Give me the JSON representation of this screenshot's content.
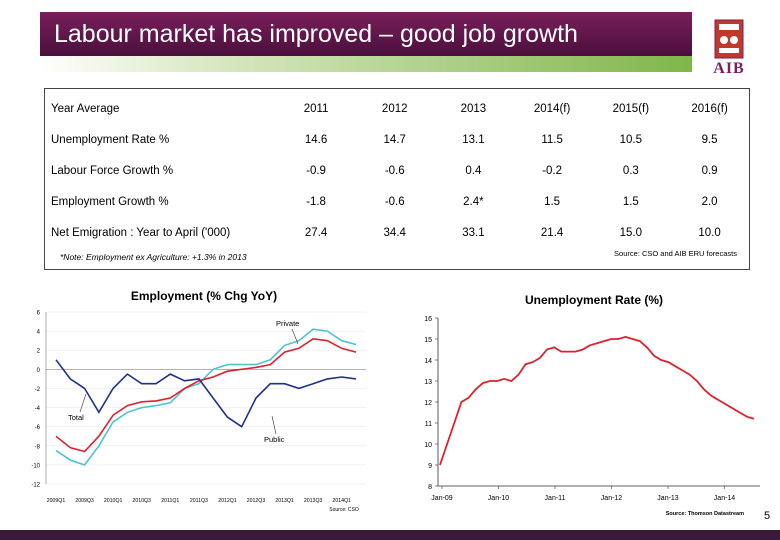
{
  "slide": {
    "title": "Labour market has improved – good job growth",
    "logo_text": "AIB",
    "page_number": "5",
    "colors": {
      "title_bg": "#6a1650",
      "accent_green": "#7fb64a",
      "logo_red": "#c0392b"
    }
  },
  "table": {
    "headers": [
      "Year Average",
      "2011",
      "2012",
      "2013",
      "2014(f)",
      "2015(f)",
      "2016(f)"
    ],
    "rows": [
      {
        "label": "Unemployment Rate %",
        "values": [
          "14.6",
          "14.7",
          "13.1",
          "11.5",
          "10.5",
          "9.5"
        ]
      },
      {
        "label": "Labour Force Growth %",
        "values": [
          "-0.9",
          "-0.6",
          "0.4",
          "-0.2",
          "0.3",
          "0.9"
        ]
      },
      {
        "label": "Employment Growth %",
        "values": [
          "-1.8",
          "-0.6",
          "2.4*",
          "1.5",
          "1.5",
          "2.0"
        ]
      },
      {
        "label": "Net Emigration : Year to April ('000)",
        "values": [
          "27.4",
          "34.4",
          "33.1",
          "21.4",
          "15.0",
          "10.0"
        ]
      }
    ],
    "note": "*Note: Employment ex Agriculture: +1.3% in 2013",
    "source": "Source: CSO and AIB ERU forecasts"
  },
  "chart_data": [
    {
      "type": "line",
      "title": "Employment (% Chg YoY)",
      "xlabel": "",
      "ylabel": "",
      "ylim": [
        -12,
        6
      ],
      "y_ticks": [
        "6",
        "4",
        "2",
        "0",
        "-2",
        "-4",
        "-6",
        "-8",
        "-10",
        "-12"
      ],
      "x_tick_labels": [
        "2009Q1",
        "2009Q3",
        "2010Q1",
        "2010Q3",
        "2011Q1",
        "2011Q3",
        "2012Q1",
        "2012Q3",
        "2013Q1",
        "2013Q3",
        "2014Q1"
      ],
      "annotations": [
        "Private",
        "Total",
        "Public"
      ],
      "source": "Source: CSO",
      "series": [
        {
          "name": "Private",
          "color": "#4dc3cc",
          "values": [
            -8.5,
            -9.5,
            -10.0,
            -8.0,
            -5.5,
            -4.5,
            -4.0,
            -3.8,
            -3.5,
            -2.0,
            -1.5,
            0.0,
            0.5,
            0.5,
            0.5,
            1.0,
            2.5,
            3.0,
            4.2,
            4.0,
            3.0,
            2.6
          ]
        },
        {
          "name": "Total",
          "color": "#e0202a",
          "values": [
            -7.0,
            -8.2,
            -8.6,
            -7.0,
            -4.8,
            -3.8,
            -3.4,
            -3.3,
            -3.0,
            -2.0,
            -1.2,
            -0.8,
            -0.2,
            0.0,
            0.2,
            0.5,
            1.8,
            2.2,
            3.2,
            3.0,
            2.2,
            1.8
          ]
        },
        {
          "name": "Public",
          "color": "#1f2f8f",
          "values": [
            1.0,
            -1.0,
            -2.0,
            -4.5,
            -2.0,
            -0.5,
            -1.5,
            -1.5,
            -0.5,
            -1.2,
            -1.0,
            -3.0,
            -5.0,
            -6.0,
            -3.0,
            -1.5,
            -1.5,
            -2.0,
            -1.5,
            -1.0,
            -0.8,
            -1.0
          ]
        }
      ]
    },
    {
      "type": "line",
      "title": "Unemployment Rate (%)",
      "xlabel": "",
      "ylabel": "",
      "ylim": [
        8,
        16
      ],
      "y_ticks": [
        "16",
        "15",
        "14",
        "13",
        "12",
        "11",
        "10",
        "9",
        "8"
      ],
      "x_tick_labels": [
        "Jan-09",
        "Jan-10",
        "Jan-11",
        "Jan-12",
        "Jan-13",
        "Jan-14"
      ],
      "source": "Source: Thomson Datastream",
      "series": [
        {
          "color": "#e0202a",
          "values": [
            9.0,
            10.0,
            11.0,
            12.0,
            12.2,
            12.6,
            12.9,
            13.0,
            13.0,
            13.1,
            13.0,
            13.3,
            13.8,
            13.9,
            14.1,
            14.5,
            14.6,
            14.4,
            14.4,
            14.4,
            14.5,
            14.7,
            14.8,
            14.9,
            15.0,
            15.0,
            15.1,
            15.0,
            14.9,
            14.6,
            14.2,
            14.0,
            13.9,
            13.7,
            13.5,
            13.3,
            13.0,
            12.6,
            12.3,
            12.1,
            11.9,
            11.7,
            11.5,
            11.3,
            11.2
          ]
        }
      ]
    }
  ]
}
